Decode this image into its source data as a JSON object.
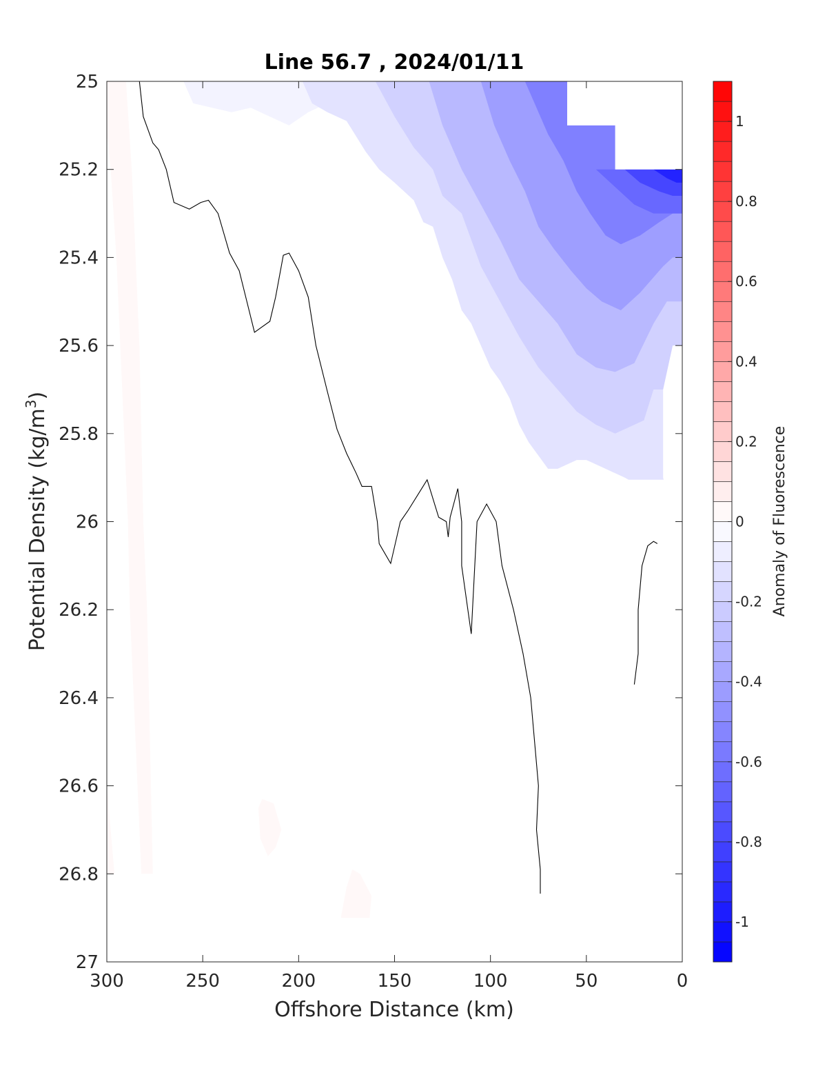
{
  "chart_data": {
    "type": "contourf",
    "title": "Line 56.7 , 2024/01/11",
    "xlabel": "Offshore Distance (km)",
    "ylabel": "Potential Density (kg/m",
    "ylabel_sup": "3",
    "ylabel_end": ")",
    "x_axis_reversed": true,
    "y_axis_reversed": true,
    "xlim": [
      300,
      0
    ],
    "ylim": [
      25,
      27
    ],
    "x_ticks": [
      300,
      250,
      200,
      150,
      100,
      50,
      0
    ],
    "x_tick_labels": [
      "300",
      "250",
      "200",
      "150",
      "100",
      "50",
      "0"
    ],
    "y_ticks": [
      25,
      25.2,
      25.4,
      25.6,
      25.8,
      26,
      26.2,
      26.4,
      26.6,
      26.8,
      27
    ],
    "y_tick_labels": [
      "25",
      "25.2",
      "25.4",
      "25.6",
      "25.8",
      "26",
      "26.2",
      "26.4",
      "26.6",
      "26.8",
      "27"
    ],
    "colorbar": {
      "label": "Anomaly of Fluorescence",
      "limits": [
        -1.1,
        1.1
      ],
      "level_step": 0.05,
      "low_color": "#0000ff",
      "mid_color": "#ffffff",
      "high_color": "#ff0000",
      "ticks": [
        -1,
        -0.8,
        -0.6,
        -0.4,
        -0.2,
        0,
        0.2,
        0.4,
        0.6,
        0.8,
        1
      ],
      "tick_labels": [
        "-1",
        "-0.8",
        "-0.6",
        "-0.4",
        "-0.2",
        "0",
        "0.2",
        "0.4",
        "0.6",
        "0.8",
        "1"
      ]
    },
    "no_data_region": [
      [
        60,
        25
      ],
      [
        0,
        25
      ],
      [
        0,
        25.2
      ],
      [
        35,
        25.2
      ],
      [
        35,
        25.1
      ],
      [
        60,
        25.1
      ]
    ],
    "zero_contour_main": [
      [
        283,
        25
      ],
      [
        281,
        25.08
      ],
      [
        276,
        25.14
      ],
      [
        273,
        25.155
      ],
      [
        269,
        25.2
      ],
      [
        265,
        25.275
      ],
      [
        257,
        25.29
      ],
      [
        251,
        25.275
      ],
      [
        247,
        25.27
      ],
      [
        242,
        25.3
      ],
      [
        236,
        25.39
      ],
      [
        231,
        25.43
      ],
      [
        227,
        25.5
      ],
      [
        223,
        25.57
      ],
      [
        215,
        25.545
      ],
      [
        212,
        25.49
      ],
      [
        208,
        25.395
      ],
      [
        205,
        25.39
      ],
      [
        200,
        25.43
      ],
      [
        195,
        25.49
      ],
      [
        191,
        25.6
      ],
      [
        185,
        25.705
      ],
      [
        180,
        25.79
      ],
      [
        175,
        25.845
      ],
      [
        170,
        25.89
      ],
      [
        167,
        25.92
      ],
      [
        162,
        25.92
      ],
      [
        159,
        26.0
      ],
      [
        158,
        26.05
      ],
      [
        152,
        26.095
      ],
      [
        147,
        26.0
      ],
      [
        143,
        25.975
      ],
      [
        138,
        25.94
      ],
      [
        133,
        25.905
      ],
      [
        127,
        25.99
      ],
      [
        123,
        26.0
      ],
      [
        122,
        26.035
      ],
      [
        121,
        25.99
      ],
      [
        117,
        25.925
      ],
      [
        115,
        26.0
      ],
      [
        115,
        26.1
      ],
      [
        110,
        26.255
      ],
      [
        107,
        26.0
      ],
      [
        102,
        25.96
      ],
      [
        97,
        26.0
      ],
      [
        94,
        26.1
      ],
      [
        88,
        26.2
      ],
      [
        83,
        26.3
      ],
      [
        79,
        26.4
      ],
      [
        77,
        26.5
      ],
      [
        75,
        26.6
      ],
      [
        76,
        26.7
      ],
      [
        74,
        26.79
      ],
      [
        74,
        26.845
      ]
    ],
    "zero_contour_small": [
      [
        25,
        26.37
      ],
      [
        23,
        26.3
      ],
      [
        23,
        26.2
      ],
      [
        21,
        26.1
      ],
      [
        18,
        26.055
      ],
      [
        15,
        26.045
      ],
      [
        13,
        26.05
      ]
    ],
    "negative_band_boundaries": [
      [
        [
          260,
          25.0
        ],
        [
          255,
          25.05
        ],
        [
          235,
          25.07
        ],
        [
          225,
          25.06
        ],
        [
          215,
          25.08
        ],
        [
          205,
          25.1
        ],
        [
          195,
          25.07
        ],
        [
          185,
          25.05
        ],
        [
          175,
          25.04
        ],
        [
          165,
          25.02
        ],
        [
          158,
          25.0
        ]
      ],
      [
        [
          198,
          25.0
        ],
        [
          193,
          25.05
        ],
        [
          185,
          25.07
        ],
        [
          175,
          25.09
        ],
        [
          165,
          25.16
        ],
        [
          158,
          25.2
        ],
        [
          150,
          25.23
        ],
        [
          140,
          25.27
        ],
        [
          135,
          25.32
        ],
        [
          130,
          25.33
        ],
        [
          125,
          25.4
        ],
        [
          120,
          25.45
        ],
        [
          115,
          25.52
        ],
        [
          110,
          25.55
        ],
        [
          105,
          25.6
        ],
        [
          100,
          25.65
        ],
        [
          95,
          25.68
        ],
        [
          90,
          25.72
        ],
        [
          85,
          25.78
        ],
        [
          80,
          25.82
        ],
        [
          75,
          25.85
        ],
        [
          70,
          25.88
        ],
        [
          65,
          25.88
        ],
        [
          60,
          25.87
        ],
        [
          55,
          25.86
        ],
        [
          50,
          25.86
        ],
        [
          45,
          25.87
        ],
        [
          40,
          25.88
        ],
        [
          35,
          25.89
        ],
        [
          30,
          25.9
        ],
        [
          28,
          25.905
        ]
      ],
      [
        [
          160,
          25.0
        ],
        [
          150,
          25.08
        ],
        [
          140,
          25.15
        ],
        [
          130,
          25.2
        ],
        [
          125,
          25.26
        ],
        [
          115,
          25.3
        ],
        [
          105,
          25.42
        ],
        [
          95,
          25.5
        ],
        [
          85,
          25.58
        ],
        [
          75,
          25.65
        ],
        [
          65,
          25.7
        ],
        [
          55,
          25.75
        ],
        [
          45,
          25.78
        ],
        [
          35,
          25.8
        ],
        [
          25,
          25.78
        ],
        [
          20,
          25.77
        ],
        [
          15,
          25.7
        ]
      ],
      [
        [
          132,
          25.0
        ],
        [
          125,
          25.1
        ],
        [
          115,
          25.2
        ],
        [
          105,
          25.28
        ],
        [
          95,
          25.36
        ],
        [
          85,
          25.45
        ],
        [
          75,
          25.5
        ],
        [
          65,
          25.55
        ],
        [
          55,
          25.62
        ],
        [
          45,
          25.65
        ],
        [
          35,
          25.66
        ],
        [
          25,
          25.64
        ],
        [
          15,
          25.55
        ],
        [
          8,
          25.5
        ]
      ],
      [
        [
          105,
          25.0
        ],
        [
          98,
          25.1
        ],
        [
          90,
          25.18
        ],
        [
          82,
          25.25
        ],
        [
          75,
          25.33
        ],
        [
          67,
          25.38
        ],
        [
          58,
          25.43
        ],
        [
          50,
          25.47
        ],
        [
          42,
          25.5
        ],
        [
          32,
          25.52
        ],
        [
          22,
          25.48
        ],
        [
          10,
          25.42
        ],
        [
          5,
          25.4
        ]
      ],
      [
        [
          82,
          25.0
        ],
        [
          76,
          25.06
        ],
        [
          70,
          25.12
        ],
        [
          62,
          25.18
        ],
        [
          55,
          25.25
        ],
        [
          48,
          25.3
        ],
        [
          40,
          25.35
        ],
        [
          32,
          25.37
        ],
        [
          22,
          25.35
        ],
        [
          12,
          25.32
        ],
        [
          5,
          25.3
        ]
      ]
    ],
    "positive_patches": [
      [
        [
          300,
          25.12
        ],
        [
          298,
          25.2
        ],
        [
          295,
          25.4
        ],
        [
          293,
          25.6
        ],
        [
          291,
          25.8
        ],
        [
          289,
          26.0
        ],
        [
          288,
          26.2
        ],
        [
          286,
          26.4
        ],
        [
          284,
          26.6
        ],
        [
          282,
          26.8
        ],
        [
          276,
          26.8
        ],
        [
          277,
          26.6
        ],
        [
          278,
          26.4
        ],
        [
          279,
          26.2
        ],
        [
          281,
          26.0
        ],
        [
          282,
          25.8
        ],
        [
          283,
          25.6
        ],
        [
          285,
          25.4
        ],
        [
          287,
          25.2
        ],
        [
          290,
          25.0
        ],
        [
          300,
          25.0
        ]
      ],
      [
        [
          300,
          26.6
        ],
        [
          296,
          26.8
        ],
        [
          300,
          26.8
        ]
      ],
      [
        [
          219,
          26.63
        ],
        [
          213,
          26.64
        ],
        [
          209,
          26.7
        ],
        [
          212,
          26.74
        ],
        [
          216,
          26.76
        ],
        [
          220,
          26.72
        ],
        [
          221,
          26.65
        ]
      ],
      [
        [
          172,
          26.79
        ],
        [
          168,
          26.8
        ],
        [
          162,
          26.85
        ],
        [
          163,
          26.9
        ],
        [
          178,
          26.9
        ],
        [
          175,
          26.83
        ]
      ]
    ]
  }
}
